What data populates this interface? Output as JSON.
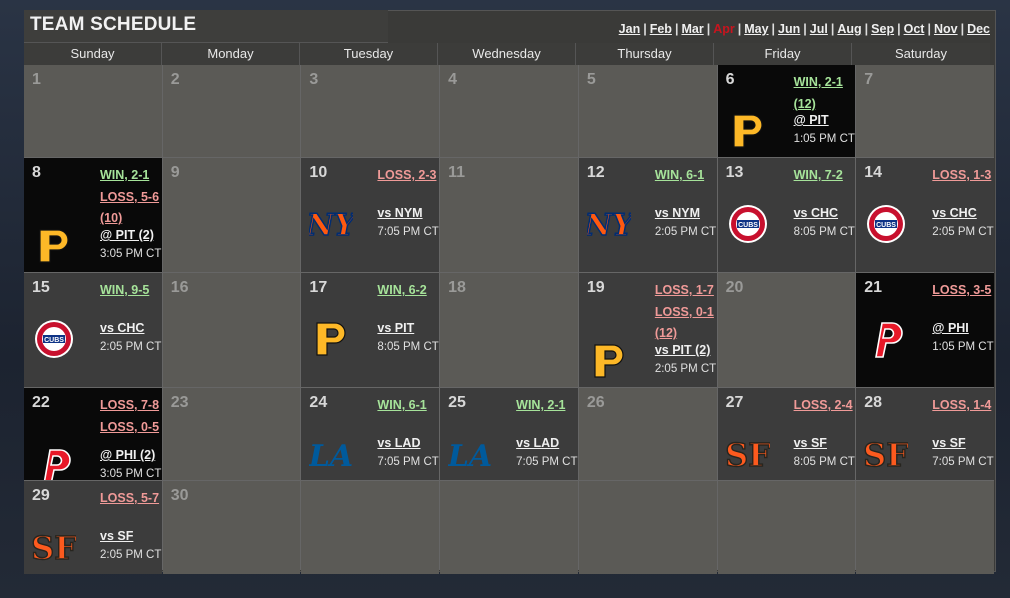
{
  "header": {
    "title": "TEAM SCHEDULE",
    "months": [
      "Jan",
      "Feb",
      "Mar",
      "Apr",
      "May",
      "Jun",
      "Jul",
      "Aug",
      "Sep",
      "Oct",
      "Nov",
      "Dec"
    ],
    "active_month": "Apr"
  },
  "weekdays": [
    "Sunday",
    "Monday",
    "Tuesday",
    "Wednesday",
    "Thursday",
    "Friday",
    "Saturday"
  ],
  "cells": [
    {
      "day": "1"
    },
    {
      "day": "2"
    },
    {
      "day": "3"
    },
    {
      "day": "4"
    },
    {
      "day": "5"
    },
    {
      "day": "6",
      "style": "dark",
      "results": [
        {
          "type": "win",
          "text": "WIN, 2-1 (12)"
        }
      ],
      "opponent": "@ PIT",
      "time": "1:05 PM CT",
      "logo": "pirates-logo-icon"
    },
    {
      "day": "7"
    },
    {
      "day": "8",
      "style": "dark",
      "results": [
        {
          "type": "win",
          "text": "WIN, 2-1"
        },
        {
          "type": "loss",
          "text": "LOSS, 5-6"
        },
        {
          "type": "loss",
          "text": "(10)"
        }
      ],
      "opponent": "@ PIT (2)",
      "time": "3:05 PM CT",
      "logo": "pirates-logo-icon"
    },
    {
      "day": "9"
    },
    {
      "day": "10",
      "style": "game",
      "results": [
        {
          "type": "loss",
          "text": "LOSS, 2-3"
        }
      ],
      "opponent": "vs NYM",
      "time": "7:05 PM CT",
      "logo": "mets-logo-icon"
    },
    {
      "day": "11"
    },
    {
      "day": "12",
      "style": "game",
      "results": [
        {
          "type": "win",
          "text": "WIN, 6-1"
        }
      ],
      "opponent": "vs NYM",
      "time": "2:05 PM CT",
      "logo": "mets-logo-icon"
    },
    {
      "day": "13",
      "style": "game",
      "results": [
        {
          "type": "win",
          "text": "WIN, 7-2"
        }
      ],
      "opponent": "vs CHC",
      "time": "8:05 PM CT",
      "logo": "cubs-logo-icon"
    },
    {
      "day": "14",
      "style": "game",
      "results": [
        {
          "type": "loss",
          "text": "LOSS, 1-3"
        }
      ],
      "opponent": "vs CHC",
      "time": "2:05 PM CT",
      "logo": "cubs-logo-icon"
    },
    {
      "day": "15",
      "style": "game",
      "results": [
        {
          "type": "win",
          "text": "WIN, 9-5"
        }
      ],
      "opponent": "vs CHC",
      "time": "2:05 PM CT",
      "logo": "cubs-logo-icon"
    },
    {
      "day": "16"
    },
    {
      "day": "17",
      "style": "game",
      "results": [
        {
          "type": "win",
          "text": "WIN, 6-2"
        }
      ],
      "opponent": "vs PIT",
      "time": "8:05 PM CT",
      "logo": "pirates-logo-icon"
    },
    {
      "day": "18"
    },
    {
      "day": "19",
      "style": "game",
      "results": [
        {
          "type": "loss",
          "text": "LOSS, 1-7"
        },
        {
          "type": "loss",
          "text": "LOSS, 0-1"
        },
        {
          "type": "loss",
          "text": "(12)"
        }
      ],
      "opponent": "vs PIT (2)",
      "time": "2:05 PM CT",
      "logo": "pirates-logo-icon"
    },
    {
      "day": "20"
    },
    {
      "day": "21",
      "style": "dark",
      "results": [
        {
          "type": "loss",
          "text": "LOSS, 3-5"
        }
      ],
      "opponent": "@ PHI",
      "time": "1:05 PM CT",
      "logo": "phillies-logo-icon"
    },
    {
      "day": "22",
      "style": "dark",
      "results": [
        {
          "type": "loss",
          "text": "LOSS, 7-8"
        },
        {
          "type": "loss",
          "text": "LOSS, 0-5"
        }
      ],
      "opponent": "@ PHI (2)",
      "time": "3:05 PM CT",
      "logo": "phillies-logo-icon"
    },
    {
      "day": "23"
    },
    {
      "day": "24",
      "style": "game",
      "results": [
        {
          "type": "win",
          "text": "WIN, 6-1"
        }
      ],
      "opponent": "vs LAD",
      "time": "7:05 PM CT",
      "logo": "dodgers-logo-icon"
    },
    {
      "day": "25",
      "style": "game",
      "results": [
        {
          "type": "win",
          "text": "WIN, 2-1"
        }
      ],
      "opponent": "vs LAD",
      "time": "7:05 PM CT",
      "logo": "dodgers-logo-icon"
    },
    {
      "day": "26"
    },
    {
      "day": "27",
      "style": "game",
      "results": [
        {
          "type": "loss",
          "text": "LOSS, 2-4"
        }
      ],
      "opponent": "vs SF",
      "time": "8:05 PM CT",
      "logo": "giants-logo-icon"
    },
    {
      "day": "28",
      "style": "game",
      "results": [
        {
          "type": "loss",
          "text": "LOSS, 1-4"
        }
      ],
      "opponent": "vs SF",
      "time": "7:05 PM CT",
      "logo": "giants-logo-icon"
    },
    {
      "day": "29",
      "style": "game",
      "results": [
        {
          "type": "loss",
          "text": "LOSS, 5-7"
        }
      ],
      "opponent": "vs SF",
      "time": "2:05 PM CT",
      "logo": "giants-logo-icon"
    },
    {
      "day": "30"
    },
    {
      "day": ""
    },
    {
      "day": ""
    },
    {
      "day": ""
    },
    {
      "day": ""
    },
    {
      "day": ""
    }
  ],
  "colors": {
    "win": "#a6e39a",
    "loss": "#f09a98",
    "active_month": "#c8141e"
  }
}
